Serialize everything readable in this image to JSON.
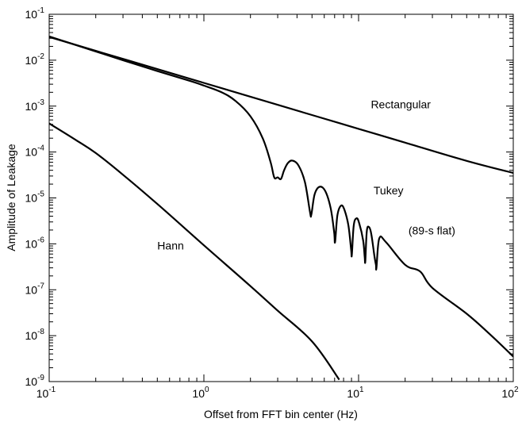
{
  "chart_data": {
    "type": "line",
    "xlabel": "Offset from FFT bin center (Hz)",
    "ylabel": "Amplitude of Leakage",
    "x_scale": "log",
    "y_scale": "log",
    "xlim": [
      0.1,
      100
    ],
    "ylim": [
      1e-09,
      0.1
    ],
    "grid": false,
    "legend": "none",
    "x_ticks": [
      {
        "base": "10",
        "exp": "-1",
        "value": 0.1
      },
      {
        "base": "10",
        "exp": "0",
        "value": 1
      },
      {
        "base": "10",
        "exp": "1",
        "value": 10
      },
      {
        "base": "10",
        "exp": "2",
        "value": 100
      }
    ],
    "y_ticks": [
      {
        "base": "10",
        "exp": "-9",
        "value": 1e-09
      },
      {
        "base": "10",
        "exp": "-8",
        "value": 1e-08
      },
      {
        "base": "10",
        "exp": "-7",
        "value": 1e-07
      },
      {
        "base": "10",
        "exp": "-6",
        "value": 1e-06
      },
      {
        "base": "10",
        "exp": "-5",
        "value": 1e-05
      },
      {
        "base": "10",
        "exp": "-4",
        "value": 0.0001
      },
      {
        "base": "10",
        "exp": "-3",
        "value": 0.001
      },
      {
        "base": "10",
        "exp": "-2",
        "value": 0.01
      },
      {
        "base": "10",
        "exp": "-1",
        "value": 0.1
      }
    ],
    "series": [
      {
        "name": "Rectangular",
        "x": [
          0.1,
          0.2,
          0.5,
          1,
          2,
          5,
          10,
          20,
          50,
          100
        ],
        "y": [
          0.032,
          0.016,
          0.0064,
          0.0032,
          0.0016,
          0.00064,
          0.00032,
          0.00016,
          6.4e-05,
          3.5e-05
        ]
      },
      {
        "name": "Tukey",
        "x": [
          0.1,
          0.3,
          0.5,
          0.8,
          1.0,
          1.3,
          1.6,
          2.0,
          2.4,
          2.7,
          2.85,
          3.0,
          3.15,
          3.3,
          3.5,
          3.75,
          4.1,
          4.5,
          4.85,
          4.95,
          5.2,
          5.6,
          6.1,
          6.6,
          6.95,
          7.05,
          7.3,
          7.7,
          8.1,
          8.6,
          8.95,
          9.05,
          9.3,
          9.7,
          10.1,
          10.7,
          10.95,
          11.05,
          11.3,
          11.7,
          12.1,
          12.65,
          12.95,
          13.05,
          13.6,
          15,
          20,
          25,
          30,
          50,
          70,
          100
        ],
        "y": [
          0.033,
          0.01,
          0.0058,
          0.0036,
          0.0028,
          0.002,
          0.0013,
          0.0006,
          0.0002,
          6e-05,
          2.8e-05,
          2.8e-05,
          2.6e-05,
          4e-05,
          5.8e-05,
          6.5e-05,
          5e-05,
          2.2e-05,
          5e-06,
          4.3e-06,
          1.2e-05,
          1.75e-05,
          1.4e-05,
          6e-06,
          1.8e-06,
          1.1e-06,
          4.2e-06,
          6.8e-06,
          5.5e-06,
          2.5e-06,
          7.5e-07,
          5.8e-07,
          2.5e-06,
          3.6e-06,
          2.8e-06,
          1.2e-06,
          5.2e-07,
          4.2e-07,
          1.9e-06,
          2.3e-06,
          1.6e-06,
          5.5e-07,
          3.5e-07,
          3e-07,
          1.3e-06,
          1.1e-06,
          3.5e-07,
          2.5e-07,
          1.1e-07,
          3e-08,
          1.1e-08,
          3.5e-09
        ]
      },
      {
        "name": "Hann",
        "x": [
          0.1,
          0.15,
          0.2,
          0.3,
          0.5,
          1,
          2,
          3,
          5,
          7.5
        ],
        "y": [
          0.00042,
          0.00018,
          9.5e-05,
          3.2e-05,
          7.4e-06,
          9.3e-07,
          1.2e-07,
          3.5e-08,
          7.5e-09,
          1.1e-09
        ]
      }
    ],
    "annotations": [
      {
        "text": "Rectangular",
        "x": 12,
        "y": 0.0009
      },
      {
        "text": "Tukey",
        "x": 12.5,
        "y": 1.2e-05
      },
      {
        "text": "(89-s flat)",
        "x": 21,
        "y": 1.6e-06
      },
      {
        "text": "Hann",
        "x": 0.5,
        "y": 7.5e-07
      }
    ]
  }
}
